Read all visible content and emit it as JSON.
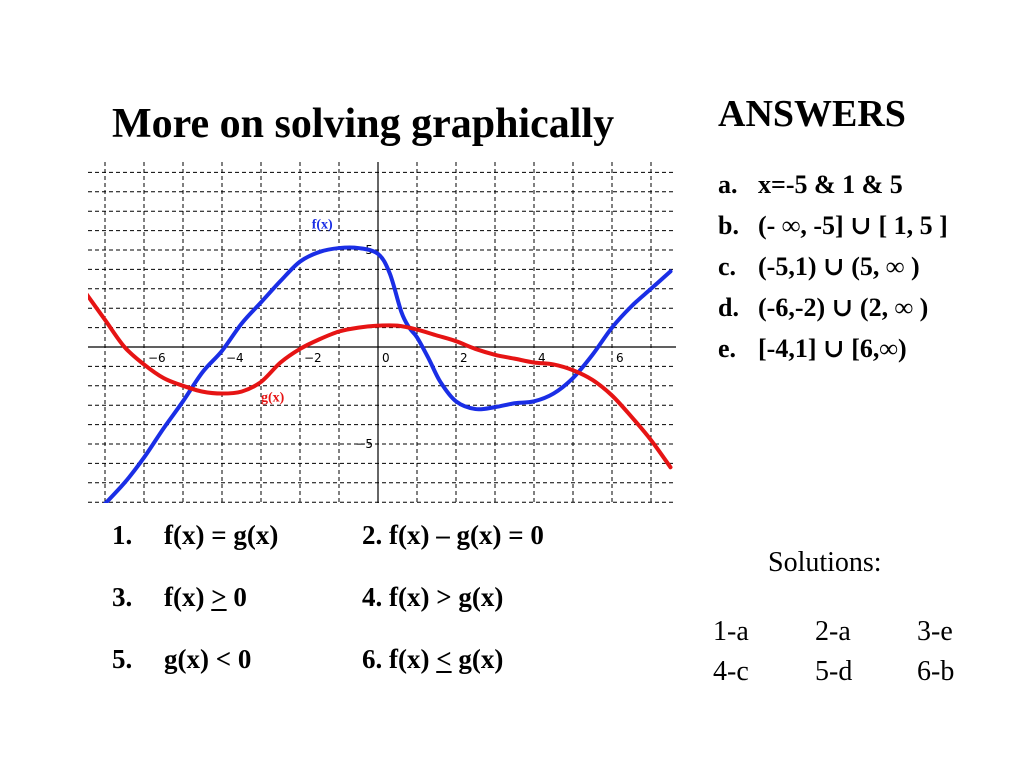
{
  "title": "More on solving graphically",
  "chart_data": {
    "type": "line",
    "xlim": [
      -7.5,
      7.5
    ],
    "ylim": [
      -8.5,
      9.5
    ],
    "grid": true,
    "grid_style": "dashed",
    "x_ticks": [
      -6,
      -4,
      -2,
      0,
      2,
      4,
      6
    ],
    "x_tick_labels": [
      "−6",
      "−4",
      "−2",
      "0",
      "2",
      "4",
      "6"
    ],
    "y_ticks": [
      5,
      0,
      -5
    ],
    "y_tick_labels": [
      "5",
      "0",
      "−5"
    ],
    "series": [
      {
        "name": "f(x)",
        "color": "#1a2ee6",
        "x": [
          -7.2,
          -6.5,
          -6,
          -5.5,
          -5,
          -4.5,
          -4,
          -3.5,
          -3,
          -2.5,
          -2,
          -1.5,
          -1,
          -0.5,
          0,
          0.3,
          0.6,
          0.8,
          1,
          1.3,
          1.6,
          2,
          2.5,
          3,
          3.5,
          4,
          4.5,
          5,
          5.5,
          6,
          6.5,
          7,
          7.5
        ],
        "y": [
          -8.5,
          -7,
          -5.7,
          -4.2,
          -2.8,
          -1.3,
          -0.2,
          1.2,
          2.3,
          3.4,
          4.4,
          4.9,
          5.1,
          5.1,
          4.8,
          3.8,
          1.8,
          1.0,
          0.5,
          -0.6,
          -1.8,
          -2.8,
          -3.2,
          -3.1,
          -2.9,
          -2.8,
          -2.4,
          -1.6,
          -0.4,
          1.0,
          2.1,
          3.0,
          3.9
        ]
      },
      {
        "name": "g(x)",
        "color": "#e61414",
        "x": [
          -7.5,
          -7,
          -6.5,
          -6,
          -5.5,
          -5,
          -4.5,
          -4,
          -3.5,
          -3,
          -2.5,
          -2,
          -1.5,
          -1,
          -0.5,
          0,
          0.5,
          1,
          1.5,
          2,
          2.5,
          3,
          3.5,
          4,
          4.5,
          5,
          5.5,
          6,
          6.5,
          7,
          7.5
        ],
        "y": [
          2.8,
          1.4,
          0,
          -0.9,
          -1.6,
          -2.0,
          -2.3,
          -2.4,
          -2.3,
          -1.8,
          -0.8,
          -0.1,
          0.4,
          0.8,
          1.0,
          1.1,
          1.1,
          0.9,
          0.6,
          0.3,
          -0.1,
          -0.4,
          -0.6,
          -0.8,
          -0.9,
          -1.2,
          -1.7,
          -2.5,
          -3.6,
          -4.8,
          -6.2
        ]
      }
    ]
  },
  "answers": {
    "heading": "ANSWERS",
    "items": [
      {
        "letter": "a.",
        "text": "x=-5 & 1 & 5"
      },
      {
        "letter": "b.",
        "text": "(- ∞, -5] ∪ [ 1, 5 ]"
      },
      {
        "letter": "c.",
        "text": "(-5,1) ∪ (5, ∞ )"
      },
      {
        "letter": "d.",
        "text": "(-6,-2)  ∪  (2, ∞ )"
      },
      {
        "letter": "e.",
        "text": "[-4,1]  ∪  [6,∞)"
      }
    ]
  },
  "questions": {
    "q1": {
      "num": "1.",
      "pre": "f(x) = g(x)",
      "op": "",
      "post": ""
    },
    "q2": {
      "num": "2.",
      "pre": "f(x) – g(x) = 0",
      "op": "",
      "post": ""
    },
    "q3": {
      "num": "3.",
      "pre": "f(x) ",
      "op": ">",
      "post": " 0"
    },
    "q4": {
      "num": "4.",
      "pre": "f(x) > g(x)",
      "op": "",
      "post": ""
    },
    "q5": {
      "num": "5.",
      "pre": "g(x) < 0",
      "op": "",
      "post": ""
    },
    "q6": {
      "num": "6.",
      "pre": "f(x) ",
      "op": "<",
      "post": " g(x)"
    }
  },
  "solutions": {
    "heading": "Solutions:",
    "rows": [
      [
        "1-a",
        "2-a",
        "3-e"
      ],
      [
        "4-c",
        "5-d",
        "6-b"
      ]
    ]
  }
}
